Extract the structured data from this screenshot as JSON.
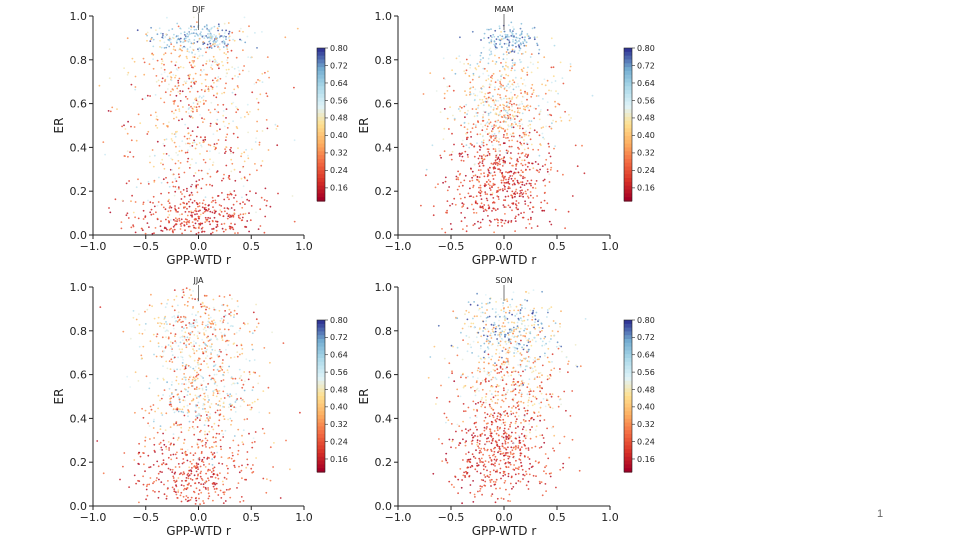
{
  "slide": {
    "page_number": "1"
  },
  "chart_data": [
    {
      "type": "scatter",
      "title": "DJF",
      "xlabel": "GPP-WTD r",
      "ylabel": "ER",
      "xlim": [
        -1.0,
        1.0
      ],
      "ylim": [
        0.0,
        1.0
      ],
      "x_ticks": [
        "−1.0",
        "−0.5",
        "0.0",
        "0.5",
        "1.0"
      ],
      "y_ticks": [
        "0.0",
        "0.2",
        "0.4",
        "0.6",
        "0.8",
        "1.0"
      ],
      "colorbar": {
        "min": 0.1,
        "max": 0.8,
        "ticks": [
          "0.80",
          "0.72",
          "0.64",
          "0.56",
          "0.48",
          "0.40",
          "0.32",
          "0.24",
          "0.16"
        ],
        "colormap": "RdYlBu"
      },
      "point_count": 1300,
      "clusters": [
        {
          "mx": -0.02,
          "sx": 0.3,
          "my": 0.08,
          "sy": 0.08,
          "weight": 0.32,
          "c_lo": 0.1,
          "c_hi": 0.3
        },
        {
          "mx": 0.0,
          "sx": 0.35,
          "my": 0.5,
          "sy": 0.22,
          "weight": 0.38,
          "c_lo": 0.1,
          "c_hi": 0.6
        },
        {
          "mx": 0.02,
          "sx": 0.22,
          "my": 0.9,
          "sy": 0.03,
          "weight": 0.15,
          "c_lo": 0.55,
          "c_hi": 0.8
        },
        {
          "mx": 0.0,
          "sx": 0.3,
          "my": 0.8,
          "sy": 0.1,
          "weight": 0.15,
          "c_lo": 0.25,
          "c_hi": 0.6
        }
      ]
    },
    {
      "type": "scatter",
      "title": "MAM",
      "xlabel": "GPP-WTD r",
      "ylabel": "ER",
      "xlim": [
        -1.0,
        1.0
      ],
      "ylim": [
        0.0,
        1.0
      ],
      "x_ticks": [
        "−1.0",
        "−0.5",
        "0.0",
        "0.5",
        "1.0"
      ],
      "y_ticks": [
        "0.0",
        "0.2",
        "0.4",
        "0.6",
        "0.8",
        "1.0"
      ],
      "colorbar": {
        "min": 0.1,
        "max": 0.8,
        "ticks": [
          "0.80",
          "0.72",
          "0.64",
          "0.56",
          "0.48",
          "0.40",
          "0.32",
          "0.24",
          "0.16"
        ],
        "colormap": "RdYlBu"
      },
      "point_count": 1300,
      "clusters": [
        {
          "mx": -0.05,
          "sx": 0.25,
          "my": 0.25,
          "sy": 0.13,
          "weight": 0.45,
          "c_lo": 0.1,
          "c_hi": 0.3
        },
        {
          "mx": 0.0,
          "sx": 0.25,
          "my": 0.55,
          "sy": 0.12,
          "weight": 0.35,
          "c_lo": 0.2,
          "c_hi": 0.65
        },
        {
          "mx": 0.05,
          "sx": 0.15,
          "my": 0.89,
          "sy": 0.03,
          "weight": 0.1,
          "c_lo": 0.6,
          "c_hi": 0.8
        },
        {
          "mx": 0.0,
          "sx": 0.28,
          "my": 0.75,
          "sy": 0.1,
          "weight": 0.1,
          "c_lo": 0.3,
          "c_hi": 0.7
        }
      ]
    },
    {
      "type": "scatter",
      "title": "JJA",
      "xlabel": "GPP-WTD r",
      "ylabel": "ER",
      "xlim": [
        -1.0,
        1.0
      ],
      "ylim": [
        0.0,
        1.0
      ],
      "x_ticks": [
        "−1.0",
        "−0.5",
        "0.0",
        "0.5",
        "1.0"
      ],
      "y_ticks": [
        "0.0",
        "0.2",
        "0.4",
        "0.6",
        "0.8",
        "1.0"
      ],
      "colorbar": {
        "min": 0.1,
        "max": 0.8,
        "ticks": [
          "0.80",
          "0.72",
          "0.64",
          "0.56",
          "0.48",
          "0.40",
          "0.32",
          "0.24",
          "0.16"
        ],
        "colormap": "RdYlBu"
      },
      "point_count": 1300,
      "clusters": [
        {
          "mx": -0.05,
          "sx": 0.28,
          "my": 0.12,
          "sy": 0.1,
          "weight": 0.3,
          "c_lo": 0.1,
          "c_hi": 0.3
        },
        {
          "mx": 0.05,
          "sx": 0.25,
          "my": 0.5,
          "sy": 0.12,
          "weight": 0.3,
          "c_lo": 0.2,
          "c_hi": 0.7
        },
        {
          "mx": 0.0,
          "sx": 0.28,
          "my": 0.8,
          "sy": 0.1,
          "weight": 0.3,
          "c_lo": 0.15,
          "c_hi": 0.65
        },
        {
          "mx": 0.0,
          "sx": 0.35,
          "my": 0.3,
          "sy": 0.15,
          "weight": 0.1,
          "c_lo": 0.1,
          "c_hi": 0.45
        }
      ]
    },
    {
      "type": "scatter",
      "title": "SON",
      "xlabel": "GPP-WTD r",
      "ylabel": "ER",
      "xlim": [
        -1.0,
        1.0
      ],
      "ylim": [
        0.0,
        1.0
      ],
      "x_ticks": [
        "−1.0",
        "−0.5",
        "0.0",
        "0.5",
        "1.0"
      ],
      "y_ticks": [
        "0.0",
        "0.2",
        "0.4",
        "0.6",
        "0.8",
        "1.0"
      ],
      "colorbar": {
        "min": 0.1,
        "max": 0.8,
        "ticks": [
          "0.80",
          "0.72",
          "0.64",
          "0.56",
          "0.48",
          "0.40",
          "0.32",
          "0.24",
          "0.16"
        ],
        "colormap": "RdYlBu"
      },
      "point_count": 1300,
      "clusters": [
        {
          "mx": -0.05,
          "sx": 0.25,
          "my": 0.25,
          "sy": 0.13,
          "weight": 0.4,
          "c_lo": 0.1,
          "c_hi": 0.3
        },
        {
          "mx": 0.05,
          "sx": 0.28,
          "my": 0.55,
          "sy": 0.12,
          "weight": 0.3,
          "c_lo": 0.15,
          "c_hi": 0.6
        },
        {
          "mx": 0.05,
          "sx": 0.25,
          "my": 0.8,
          "sy": 0.08,
          "weight": 0.3,
          "c_lo": 0.3,
          "c_hi": 0.8
        }
      ]
    }
  ]
}
